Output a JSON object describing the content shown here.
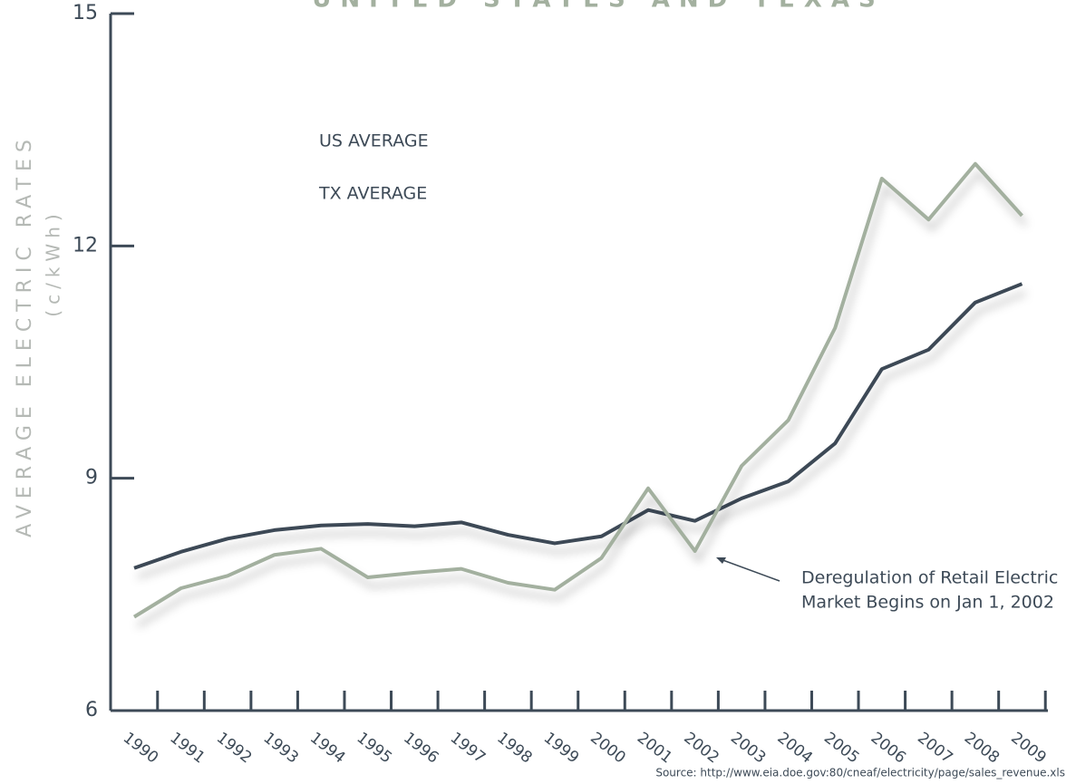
{
  "chart_data": {
    "type": "line",
    "title": "UNITED STATES AND TEXAS",
    "y_axis_label": "AVERAGE ELECTRIC RATES",
    "y_axis_unit": "(c/kWh)",
    "categories": [
      "1990",
      "1991",
      "1992",
      "1993",
      "1994",
      "1995",
      "1996",
      "1997",
      "1998",
      "1999",
      "2000",
      "2001",
      "2002",
      "2003",
      "2004",
      "2005",
      "2006",
      "2007",
      "2008",
      "2009"
    ],
    "series": [
      {
        "name": "US AVERAGE",
        "color": "#3d4a57",
        "values": [
          7.84,
          8.05,
          8.22,
          8.33,
          8.39,
          8.41,
          8.38,
          8.43,
          8.27,
          8.16,
          8.25,
          8.59,
          8.45,
          8.74,
          8.96,
          9.45,
          10.41,
          10.66,
          11.27,
          11.51
        ]
      },
      {
        "name": "TX AVERAGE",
        "color": "#a3b09f",
        "values": [
          7.21,
          7.58,
          7.74,
          8.01,
          8.09,
          7.72,
          7.78,
          7.83,
          7.65,
          7.56,
          7.97,
          8.87,
          8.06,
          9.16,
          9.75,
          10.94,
          12.87,
          12.34,
          13.06,
          12.39
        ]
      }
    ],
    "ylim": [
      6,
      15
    ],
    "yticks": [
      6,
      9,
      12,
      15
    ],
    "annotation": [
      "Deregulation of Retail Electric",
      "Market Begins on Jan 1, 2002"
    ],
    "source": "Source: http://www.eia.doe.gov:80/cneaf/electricity/page/sales_revenue.xls"
  }
}
